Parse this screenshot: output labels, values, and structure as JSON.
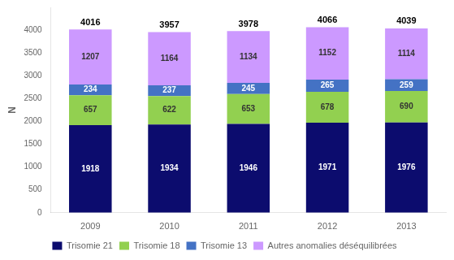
{
  "chart_data": {
    "type": "bar",
    "stacked": true,
    "categories": [
      "2009",
      "2010",
      "2011",
      "2012",
      "2013"
    ],
    "series": [
      {
        "name": "Trisomie 21",
        "color": "#0C0C6E",
        "values": [
          1918,
          1934,
          1946,
          1971,
          1976
        ]
      },
      {
        "name": "Trisomie 18",
        "color": "#92D050",
        "values": [
          657,
          622,
          653,
          678,
          690
        ]
      },
      {
        "name": "Trisomie 13",
        "color": "#4472C4",
        "values": [
          234,
          237,
          245,
          265,
          259
        ]
      },
      {
        "name": "Autres anomalies déséquilibrées",
        "color": "#CC99FF",
        "values": [
          1207,
          1164,
          1134,
          1152,
          1114
        ]
      }
    ],
    "totals": [
      4016,
      3957,
      3978,
      4066,
      4039
    ],
    "ylabel": "N",
    "ylim": [
      0,
      4500
    ],
    "yticks": [
      0,
      500,
      1000,
      1500,
      2000,
      2500,
      3000,
      3500,
      4000
    ],
    "grid": false,
    "legend": "bottom",
    "data_labels": true
  }
}
